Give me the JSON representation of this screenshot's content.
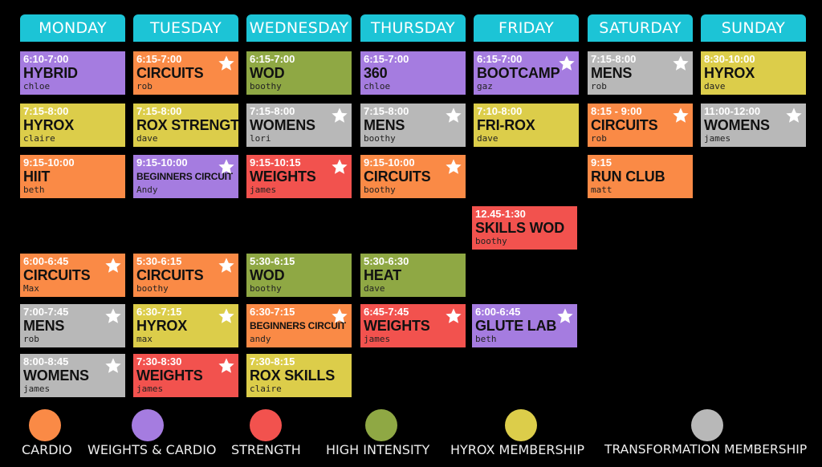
{
  "days": [
    "MONDAY",
    "TUESDAY",
    "WEDNESDAY",
    "THURSDAY",
    "FRIDAY",
    "SATURDAY",
    "SUNDAY"
  ],
  "sessions": {
    "mon1": {
      "time": "6:10-7:00",
      "name": "HYBRID",
      "trainer": "chloe",
      "category": "weights-cardio",
      "star": false
    },
    "mon2": {
      "time": "7:15-8:00",
      "name": "HYROX",
      "trainer": "claire",
      "category": "hyrox-membership",
      "star": false
    },
    "mon3": {
      "time": "9:15-10:00",
      "name": "HIIT",
      "trainer": "beth",
      "category": "cardio",
      "star": false
    },
    "mon4": {
      "time": "6:00-6:45",
      "name": "CIRCUITS",
      "trainer": "Max",
      "category": "cardio",
      "star": true
    },
    "mon5": {
      "time": "7:00-7:45",
      "name": "MENS",
      "trainer": "rob",
      "category": "transformation-membership",
      "star": true
    },
    "mon6": {
      "time": "8:00-8:45",
      "name": "WOMENS",
      "trainer": "james",
      "category": "transformation-membership",
      "star": true
    },
    "tue1": {
      "time": "6:15-7:00",
      "name": "CIRCUITS",
      "trainer": "rob",
      "category": "cardio",
      "star": true
    },
    "tue2": {
      "time": "7:15-8:00",
      "name": "ROX STRENGTH",
      "trainer": "dave",
      "category": "hyrox-membership",
      "star": false
    },
    "tue3": {
      "time": "9:15-10:00",
      "name": "BEGINNERS CIRCUIT",
      "trainer": "Andy",
      "category": "weights-cardio",
      "star": true
    },
    "tue4": {
      "time": "5:30-6:15",
      "name": "CIRCUITS",
      "trainer": "boothy",
      "category": "cardio",
      "star": true
    },
    "tue5": {
      "time": "6:30-7:15",
      "name": "HYROX",
      "trainer": "max",
      "category": "hyrox-membership",
      "star": true
    },
    "tue6": {
      "time": "7:30-8:30",
      "name": "WEIGHTS",
      "trainer": "james",
      "category": "strength",
      "star": true
    },
    "wed1": {
      "time": "6:15-7:00",
      "name": "WOD",
      "trainer": "boothy",
      "category": "high-intensity",
      "star": false
    },
    "wed2": {
      "time": "7:15-8:00",
      "name": "WOMENS",
      "trainer": "lori",
      "category": "transformation-membership",
      "star": true
    },
    "wed3": {
      "time": "9:15-10:15",
      "name": "WEIGHTS",
      "trainer": "james",
      "category": "strength",
      "star": true
    },
    "wed4": {
      "time": "5:30-6:15",
      "name": "WOD",
      "trainer": "boothy",
      "category": "high-intensity",
      "star": false
    },
    "wed5": {
      "time": "6:30-7:15",
      "name": "BEGINNERS CIRCUIT",
      "trainer": "andy",
      "category": "cardio",
      "star": true
    },
    "wed6": {
      "time": "7:30-8:15",
      "name": "ROX SKILLS",
      "trainer": "claire",
      "category": "hyrox-membership",
      "star": false
    },
    "thu1": {
      "time": "6:15-7:00",
      "name": "360",
      "trainer": "chloe",
      "category": "weights-cardio",
      "star": false
    },
    "thu2": {
      "time": "7:15-8:00",
      "name": "MENS",
      "trainer": "boothy",
      "category": "transformation-membership",
      "star": true
    },
    "thu3": {
      "time": "9:15-10:00",
      "name": "CIRCUITS",
      "trainer": "boothy",
      "category": "cardio",
      "star": true
    },
    "thu4": {
      "time": "5:30-6:30",
      "name": "HEAT",
      "trainer": "dave",
      "category": "high-intensity",
      "star": false
    },
    "thu5": {
      "time": "6:45-7:45",
      "name": "WEIGHTS",
      "trainer": "james",
      "category": "strength",
      "star": true
    },
    "fri1": {
      "time": "6:15-7:00",
      "name": "BOOTCAMP",
      "trainer": "gaz",
      "category": "weights-cardio",
      "star": true
    },
    "fri2": {
      "time": "7:10-8:00",
      "name": "FRI-ROX",
      "trainer": "dave",
      "category": "hyrox-membership",
      "star": false
    },
    "fri3": {
      "time": "12.45-1:30",
      "name": "SKILLS WOD",
      "trainer": "boothy",
      "category": "strength",
      "star": false
    },
    "fri4": {
      "time": "6:00-6:45",
      "name": "GLUTE LAB",
      "trainer": "beth",
      "category": "weights-cardio",
      "star": true
    },
    "sat1": {
      "time": "7:15-8:00",
      "name": "MENS",
      "trainer": "rob",
      "category": "transformation-membership",
      "star": true
    },
    "sat2": {
      "time": "8:15 - 9:00",
      "name": "CIRCUITS",
      "trainer": "rob",
      "category": "cardio",
      "star": true
    },
    "sat3": {
      "time": "9:15",
      "name": "RUN CLUB",
      "trainer": "matt",
      "category": "cardio",
      "star": false
    },
    "sun1": {
      "time": "8:30-10:00",
      "name": "HYROX",
      "trainer": "dave",
      "category": "hyrox-membership",
      "star": false
    },
    "sun2": {
      "time": "11:00-12:00",
      "name": "WOMENS",
      "trainer": "james",
      "category": "transformation-membership",
      "star": true
    }
  },
  "legend": [
    {
      "label": "CARDIO",
      "color": "#fa8a46"
    },
    {
      "label": "WEIGHTS & CARDIO",
      "color": "#a57ce0"
    },
    {
      "label": "STRENGTH",
      "color": "#f2524e"
    },
    {
      "label": "HIGH INTENSITY",
      "color": "#8fa844"
    },
    {
      "label": "HYROX MEMBERSHIP",
      "color": "#dccd4a"
    },
    {
      "label": "TRANSFORMATION MEMBERSHIP",
      "color": "#b8b8b8"
    }
  ],
  "colors": {
    "header": "#1cc4d6",
    "background": "#000000",
    "cardio": "#fa8a46",
    "weights-cardio": "#a57ce0",
    "strength": "#f2524e",
    "high-intensity": "#8fa844",
    "hyrox-membership": "#dccd4a",
    "transformation-membership": "#b8b8b8"
  }
}
